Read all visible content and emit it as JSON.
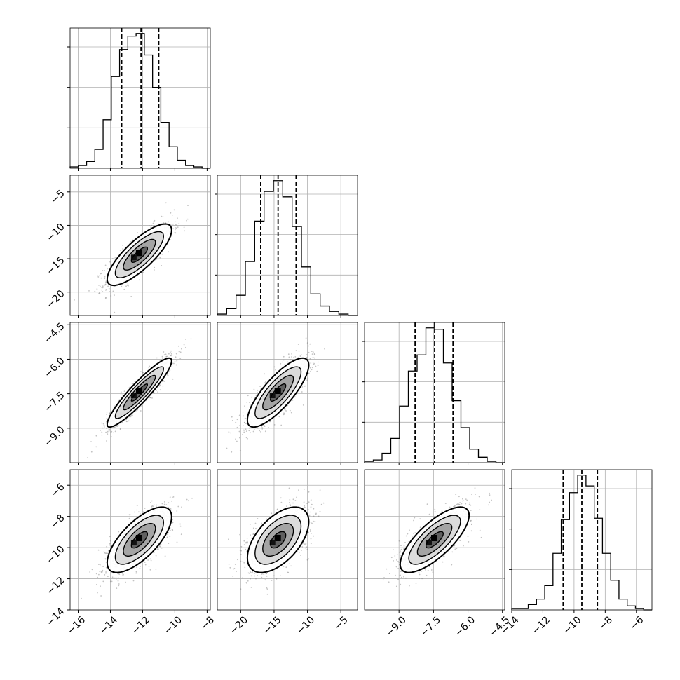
{
  "chart_data": {
    "type": "corner",
    "parameters": [
      {
        "range": [
          -16.5,
          -7.8
        ],
        "ticks": [
          -16,
          -14,
          -12,
          -10,
          -8
        ],
        "tick_labels": [
          "−16",
          "−14",
          "−12",
          "−10",
          "−8"
        ]
      },
      {
        "range": [
          -23.5,
          -2.5
        ],
        "ticks": [
          -20,
          -15,
          -10,
          -5
        ],
        "tick_labels": [
          "−20",
          "−15",
          "−10",
          "−5"
        ]
      },
      {
        "range": [
          -10.5,
          -4.4
        ],
        "ticks": [
          -9.0,
          -7.5,
          -6.0,
          -4.5
        ],
        "tick_labels": [
          "−9.0",
          "−7.5",
          "−6.0",
          "−4.5"
        ]
      },
      {
        "range": [
          -14.0,
          -5.0
        ],
        "ticks": [
          -14,
          -12,
          -10,
          -8,
          -6
        ],
        "tick_labels": [
          "−14",
          "−12",
          "−10",
          "−8",
          "−6"
        ]
      }
    ],
    "marginals": [
      {
        "quantiles": [
          -13.3,
          -12.1,
          -11.0
        ],
        "counts": [
          1,
          2,
          5,
          14,
          36,
          68,
          88,
          98,
          100,
          84,
          60,
          34,
          16,
          6,
          2,
          1,
          0
        ]
      },
      {
        "quantiles": [
          -17.0,
          -14.4,
          -11.7
        ],
        "counts": [
          1,
          5,
          15,
          40,
          70,
          92,
          100,
          88,
          66,
          36,
          16,
          7,
          3,
          1,
          0
        ]
      },
      {
        "quantiles": [
          -8.3,
          -7.45,
          -6.65
        ],
        "counts": [
          1,
          2,
          7,
          18,
          42,
          68,
          80,
          100,
          99,
          74,
          46,
          26,
          10,
          4,
          1,
          0
        ]
      },
      {
        "quantiles": [
          -10.7,
          -9.5,
          -8.5
        ],
        "counts": [
          1,
          1,
          4,
          8,
          18,
          42,
          67,
          87,
          100,
          92,
          68,
          42,
          22,
          8,
          3,
          1,
          0
        ]
      }
    ],
    "pairs": [
      {
        "x": 0,
        "y": 1,
        "mean": [
          -12.2,
          -14.4
        ],
        "sd": [
          1.0,
          2.3
        ],
        "rho": 0.8
      },
      {
        "x": 0,
        "y": 2,
        "mean": [
          -12.2,
          -7.45
        ],
        "sd": [
          1.0,
          0.75
        ],
        "rho": 0.92
      },
      {
        "x": 1,
        "y": 2,
        "mean": [
          -14.4,
          -7.45
        ],
        "sd": [
          2.3,
          0.75
        ],
        "rho": 0.8
      },
      {
        "x": 0,
        "y": 3,
        "mean": [
          -12.2,
          -9.5
        ],
        "sd": [
          1.0,
          1.05
        ],
        "rho": 0.7
      },
      {
        "x": 1,
        "y": 3,
        "mean": [
          -14.4,
          -9.5
        ],
        "sd": [
          2.3,
          1.05
        ],
        "rho": 0.55
      },
      {
        "x": 2,
        "y": 3,
        "mean": [
          -7.45,
          -9.5
        ],
        "sd": [
          0.75,
          1.05
        ],
        "rho": 0.75
      }
    ],
    "contour_levels_sigma": [
      0.5,
      1.0,
      1.5,
      2.0
    ],
    "grid": true,
    "title": "",
    "axis_labels": []
  }
}
